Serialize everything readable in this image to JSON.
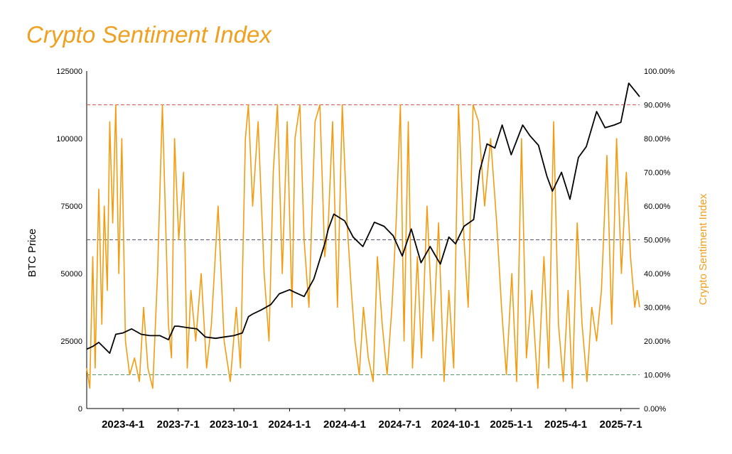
{
  "chart_data": {
    "type": "line",
    "title": "Crypto Sentiment Index",
    "x_range": [
      "2023-01-31",
      "2025-08-01"
    ],
    "x_ticks": [
      "2023-4-1",
      "2023-7-1",
      "2023-10-1",
      "2024-1-1",
      "2024-4-1",
      "2024-7-1",
      "2024-10-1",
      "2025-1-1",
      "2025-4-1",
      "2025-7-1"
    ],
    "y_left": {
      "label": "BTC Price",
      "range": [
        0,
        125000
      ],
      "ticks": [
        "0",
        "25000",
        "50000",
        "75000",
        "100000",
        "125000"
      ]
    },
    "y_right": {
      "label": "Crypto Sentiment Index",
      "range": [
        0,
        100
      ],
      "ticks": [
        "0.00%",
        "10.00%",
        "20.00%",
        "30.00%",
        "40.00%",
        "50.00%",
        "60.00%",
        "70.00%",
        "80.00%",
        "90.00%",
        "100.00%"
      ]
    },
    "reference_lines": [
      {
        "value": 90,
        "axis": "right",
        "color": "#d9534f"
      },
      {
        "value": 50,
        "axis": "right",
        "color": "#555577"
      },
      {
        "value": 10,
        "axis": "right",
        "color": "#4f9a6a"
      }
    ],
    "grid": false,
    "colors": {
      "btc": "#000000",
      "sentiment": "#f39c12"
    },
    "series": [
      {
        "axis": "left",
        "color": "#000000",
        "x": [
          "2023-01-31",
          "2023-02-10",
          "2023-02-20",
          "2023-03-01",
          "2023-03-10",
          "2023-03-20",
          "2023-04-01",
          "2023-04-15",
          "2023-05-01",
          "2023-05-15",
          "2023-06-01",
          "2023-06-15",
          "2023-06-25",
          "2023-07-01",
          "2023-07-15",
          "2023-08-01",
          "2023-08-15",
          "2023-09-01",
          "2023-09-15",
          "2023-10-01",
          "2023-10-15",
          "2023-10-25",
          "2023-11-01",
          "2023-11-15",
          "2023-12-01",
          "2023-12-15",
          "2024-01-01",
          "2024-01-10",
          "2024-01-25",
          "2024-02-10",
          "2024-02-28",
          "2024-03-05",
          "2024-03-14",
          "2024-04-01",
          "2024-04-15",
          "2024-05-01",
          "2024-05-20",
          "2024-06-05",
          "2024-06-20",
          "2024-07-05",
          "2024-07-20",
          "2024-08-05",
          "2024-08-20",
          "2024-09-06",
          "2024-09-20",
          "2024-10-01",
          "2024-10-15",
          "2024-10-31",
          "2024-11-10",
          "2024-11-22",
          "2024-12-05",
          "2024-12-17",
          "2025-01-01",
          "2025-01-20",
          "2025-02-01",
          "2025-02-15",
          "2025-03-01",
          "2025-03-10",
          "2025-03-25",
          "2025-04-08",
          "2025-04-22",
          "2025-05-05",
          "2025-05-22",
          "2025-06-05",
          "2025-06-20",
          "2025-07-01",
          "2025-07-14",
          "2025-07-25",
          "2025-08-01"
        ],
        "values": [
          22000,
          23000,
          24500,
          22500,
          20500,
          27500,
          28000,
          29500,
          27500,
          27000,
          27000,
          25500,
          30500,
          30500,
          30000,
          29500,
          26500,
          26000,
          26500,
          27000,
          28000,
          34000,
          35000,
          36500,
          38500,
          42500,
          44000,
          43000,
          41500,
          48000,
          61000,
          66500,
          72000,
          69500,
          63500,
          60000,
          69000,
          67500,
          64000,
          56500,
          66500,
          54000,
          60000,
          53500,
          63500,
          61000,
          67500,
          70000,
          88000,
          98000,
          96500,
          105000,
          94000,
          105000,
          101000,
          97500,
          86000,
          80500,
          87500,
          77500,
          93000,
          97000,
          110000,
          104000,
          105000,
          106000,
          120500,
          117500,
          115500
        ]
      },
      {
        "axis": "right",
        "color": "#f39c12",
        "x": [
          "2023-01-31",
          "2023-02-05",
          "2023-02-10",
          "2023-02-14",
          "2023-02-20",
          "2023-02-25",
          "2023-03-01",
          "2023-03-06",
          "2023-03-10",
          "2023-03-15",
          "2023-03-20",
          "2023-03-25",
          "2023-03-30",
          "2023-04-05",
          "2023-04-12",
          "2023-04-20",
          "2023-04-28",
          "2023-05-05",
          "2023-05-12",
          "2023-05-20",
          "2023-05-28",
          "2023-06-05",
          "2023-06-15",
          "2023-06-20",
          "2023-06-25",
          "2023-07-02",
          "2023-07-10",
          "2023-07-16",
          "2023-07-22",
          "2023-07-30",
          "2023-08-08",
          "2023-08-17",
          "2023-08-25",
          "2023-09-05",
          "2023-09-15",
          "2023-09-25",
          "2023-10-05",
          "2023-10-12",
          "2023-10-20",
          "2023-10-25",
          "2023-11-01",
          "2023-11-10",
          "2023-11-20",
          "2023-11-28",
          "2023-12-05",
          "2023-12-12",
          "2023-12-20",
          "2023-12-28",
          "2024-01-05",
          "2024-01-10",
          "2024-01-18",
          "2024-01-25",
          "2024-02-02",
          "2024-02-12",
          "2024-02-20",
          "2024-02-28",
          "2024-03-05",
          "2024-03-12",
          "2024-03-20",
          "2024-03-28",
          "2024-04-05",
          "2024-04-12",
          "2024-04-18",
          "2024-04-25",
          "2024-05-02",
          "2024-05-10",
          "2024-05-18",
          "2024-05-25",
          "2024-06-02",
          "2024-06-10",
          "2024-06-18",
          "2024-06-25",
          "2024-07-02",
          "2024-07-08",
          "2024-07-15",
          "2024-07-22",
          "2024-07-30",
          "2024-08-06",
          "2024-08-15",
          "2024-08-25",
          "2024-09-03",
          "2024-09-12",
          "2024-09-20",
          "2024-09-28",
          "2024-10-06",
          "2024-10-15",
          "2024-10-22",
          "2024-10-30",
          "2024-11-08",
          "2024-11-18",
          "2024-11-28",
          "2024-12-08",
          "2024-12-16",
          "2024-12-24",
          "2025-01-02",
          "2025-01-10",
          "2025-01-18",
          "2025-01-26",
          "2025-02-04",
          "2025-02-14",
          "2025-02-24",
          "2025-03-04",
          "2025-03-12",
          "2025-03-20",
          "2025-03-28",
          "2025-04-05",
          "2025-04-12",
          "2025-04-20",
          "2025-04-28",
          "2025-05-06",
          "2025-05-14",
          "2025-05-22",
          "2025-05-30",
          "2025-06-08",
          "2025-06-16",
          "2025-06-24",
          "2025-07-02",
          "2025-07-10",
          "2025-07-17",
          "2025-07-24",
          "2025-07-28",
          "2025-08-01"
        ],
        "values": [
          12,
          6,
          45,
          12,
          65,
          25,
          60,
          35,
          85,
          55,
          90,
          40,
          80,
          20,
          10,
          15,
          8,
          30,
          12,
          6,
          40,
          90,
          25,
          15,
          80,
          50,
          70,
          12,
          35,
          20,
          40,
          12,
          25,
          60,
          20,
          8,
          30,
          12,
          80,
          90,
          60,
          85,
          40,
          20,
          70,
          90,
          40,
          85,
          30,
          80,
          90,
          50,
          30,
          85,
          90,
          45,
          55,
          85,
          30,
          90,
          55,
          35,
          20,
          10,
          30,
          15,
          8,
          45,
          25,
          10,
          30,
          55,
          90,
          20,
          85,
          12,
          45,
          15,
          60,
          20,
          55,
          8,
          35,
          12,
          90,
          50,
          30,
          90,
          85,
          60,
          80,
          55,
          30,
          10,
          40,
          8,
          80,
          15,
          35,
          6,
          45,
          12,
          85,
          25,
          8,
          35,
          6,
          55,
          25,
          8,
          30,
          20,
          35,
          75,
          25,
          80,
          40,
          70,
          45,
          30,
          35,
          30
        ]
      }
    ]
  }
}
